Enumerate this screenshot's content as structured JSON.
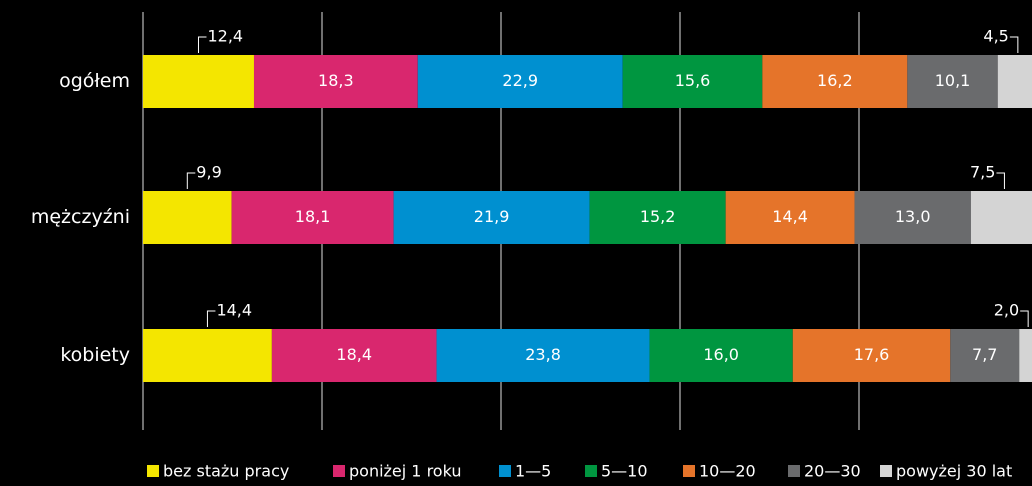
{
  "chart_data": {
    "type": "stacked-barh",
    "categories": [
      "ogółem",
      "mężczyźni",
      "kobiety"
    ],
    "xlim": [
      0,
      100
    ],
    "xticks": [
      0,
      20,
      40,
      60,
      80,
      100
    ],
    "grid": true,
    "series": [
      {
        "name": "bez stażu pracy",
        "color": "#f4e600",
        "values": [
          12.4,
          9.9,
          14.4
        ],
        "value_labels": [
          "12,4",
          "9,9",
          "14,4"
        ]
      },
      {
        "name": "poniżej 1 roku",
        "color": "#d9276e",
        "values": [
          18.3,
          18.1,
          18.4
        ],
        "value_labels": [
          "18,3",
          "18,1",
          "18,4"
        ]
      },
      {
        "name": "1—5",
        "color": "#0090d0",
        "values": [
          22.9,
          21.9,
          23.8
        ],
        "value_labels": [
          "22,9",
          "21,9",
          "23,8"
        ]
      },
      {
        "name": "5—10",
        "color": "#009640",
        "values": [
          15.6,
          15.2,
          16.0
        ],
        "value_labels": [
          "15,6",
          "15,2",
          "16,0"
        ]
      },
      {
        "name": "10—20",
        "color": "#e5742a",
        "values": [
          16.2,
          14.4,
          17.6
        ],
        "value_labels": [
          "16,2",
          "14,4",
          "17,6"
        ]
      },
      {
        "name": "20—30",
        "color": "#6a6b6d",
        "values": [
          10.1,
          13.0,
          7.7
        ],
        "value_labels": [
          "10,1",
          "13,0",
          "7,7"
        ]
      },
      {
        "name": "powyżej 30 lat",
        "color": "#d4d4d4",
        "values": [
          4.5,
          7.5,
          2.0
        ],
        "value_labels": [
          "4,5",
          "7,5",
          "2,0"
        ]
      }
    ]
  }
}
